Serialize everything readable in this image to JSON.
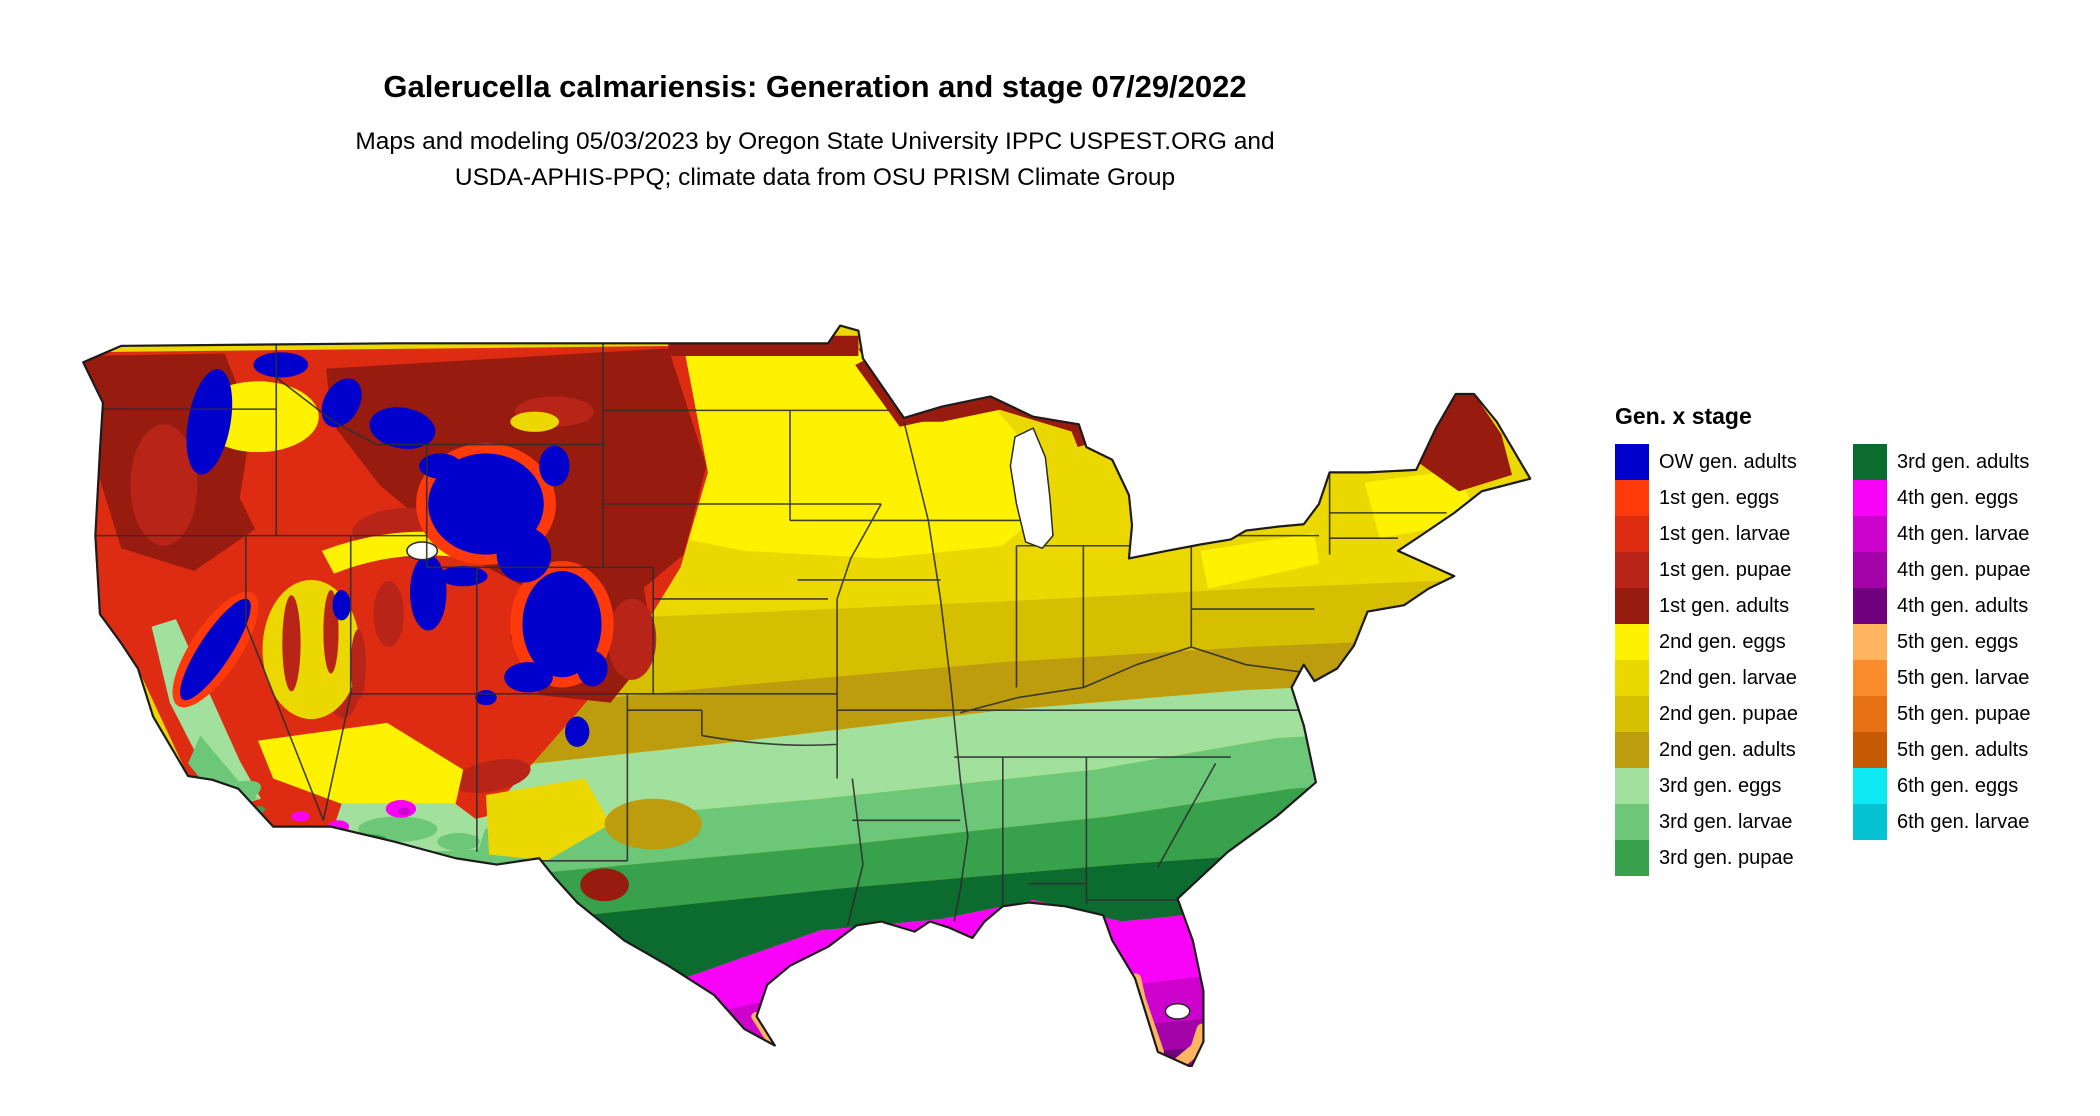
{
  "header": {
    "title": "Galerucella calmariensis: Generation and stage 07/29/2022",
    "subtitle_line1": "Maps and modeling 05/03/2023 by Oregon State University IPPC USPEST.ORG and",
    "subtitle_line2": "USDA-APHIS-PPQ; climate data from OSU PRISM Climate Group"
  },
  "legend": {
    "title": "Gen. x stage",
    "columns": [
      {
        "items": [
          {
            "key": "ow-adults",
            "label": "OW gen. adults",
            "color": "#0000CC"
          },
          {
            "key": "g1-eggs",
            "label": "1st gen. eggs",
            "color": "#FF3A0A"
          },
          {
            "key": "g1-larvae",
            "label": "1st gen. larvae",
            "color": "#DD2C12"
          },
          {
            "key": "g1-pupae",
            "label": "1st gen. pupae",
            "color": "#B82418"
          },
          {
            "key": "g1-adults",
            "label": "1st gen. adults",
            "color": "#981B10"
          },
          {
            "key": "g2-eggs",
            "label": "2nd gen. eggs",
            "color": "#FFF200"
          },
          {
            "key": "g2-larvae",
            "label": "2nd gen. larvae",
            "color": "#EBD800"
          },
          {
            "key": "g2-pupae",
            "label": "2nd gen. pupae",
            "color": "#D6BE00"
          },
          {
            "key": "g2-adults",
            "label": "2nd gen. adults",
            "color": "#BD9C0E"
          },
          {
            "key": "g3-eggs",
            "label": "3rd gen. eggs",
            "color": "#A2E09D"
          },
          {
            "key": "g3-larvae",
            "label": "3rd gen. larvae",
            "color": "#6CC878"
          },
          {
            "key": "g3-pupae",
            "label": "3rd gen. pupae",
            "color": "#37A14B"
          }
        ]
      },
      {
        "items": [
          {
            "key": "g3-adults",
            "label": "3rd gen. adults",
            "color": "#0C6B2E"
          },
          {
            "key": "g4-eggs",
            "label": "4th gen. eggs",
            "color": "#F803F8"
          },
          {
            "key": "g4-larvae",
            "label": "4th gen. larvae",
            "color": "#CC02CC"
          },
          {
            "key": "g4-pupae",
            "label": "4th gen. pupae",
            "color": "#A302A8"
          },
          {
            "key": "g4-adults",
            "label": "4th gen. adults",
            "color": "#71027E"
          },
          {
            "key": "g5-eggs",
            "label": "5th gen. eggs",
            "color": "#FFB45F"
          },
          {
            "key": "g5-larvae",
            "label": "5th gen. larvae",
            "color": "#FB8C2C"
          },
          {
            "key": "g5-pupae",
            "label": "5th gen. pupae",
            "color": "#E57112"
          },
          {
            "key": "g5-adults",
            "label": "5th gen. adults",
            "color": "#C65A02"
          },
          {
            "key": "g6-eggs",
            "label": "6th gen. eggs",
            "color": "#0CE9F2"
          },
          {
            "key": "g6-larvae",
            "label": "6th gen. larvae",
            "color": "#06C3D4"
          }
        ]
      }
    ]
  },
  "map": {
    "name": "contiguous-us-generation-stage-map",
    "date_shown": "07/29/2022"
  }
}
